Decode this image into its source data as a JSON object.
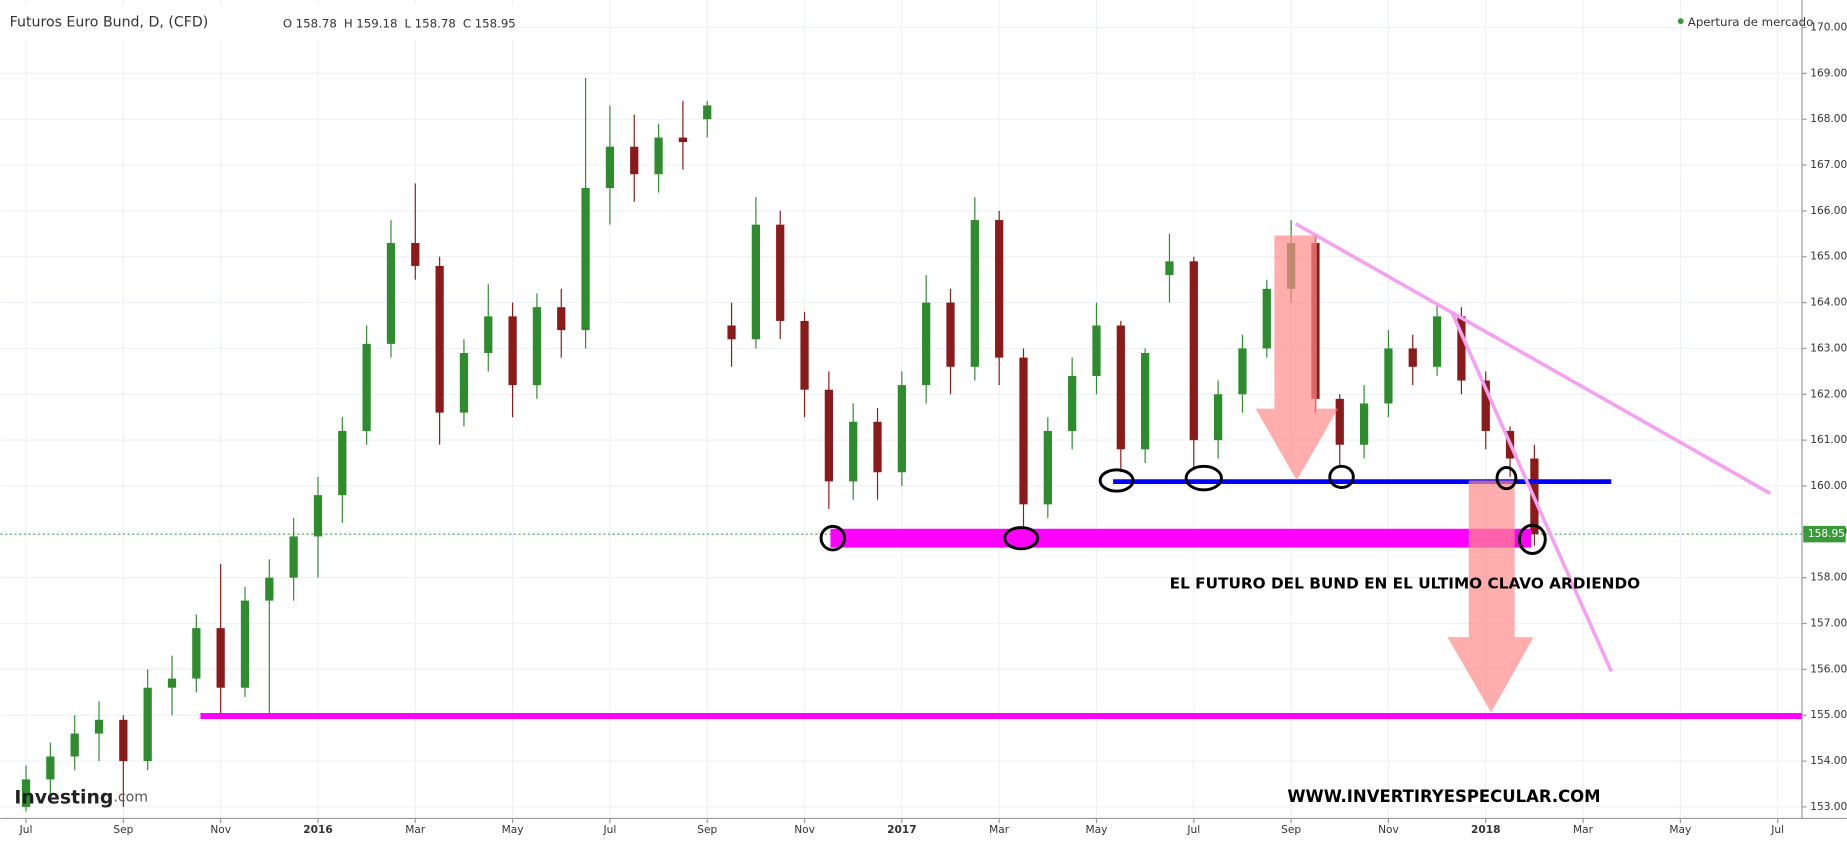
{
  "header": {
    "title": "Futuros Euro Bund, D, (CFD)",
    "ohlc": [
      {
        "label": "O",
        "value": 158.78
      },
      {
        "label": "H",
        "value": 159.18
      },
      {
        "label": "L",
        "value": 158.78
      },
      {
        "label": "C",
        "value": 158.95
      }
    ],
    "status": "Apertura de mercado"
  },
  "annotations": {
    "headline": "EL FUTURO DEL BUND EN EL ULTIMO CLAVO ARDIENDO",
    "website": "WWW.INVERTIRYESPECULAR.COM",
    "logo": "Investing",
    "logo_suffix": ".com"
  },
  "chart_data": {
    "type": "candlestick",
    "categories": [
      null,
      null,
      null,
      null,
      null,
      null,
      null,
      null,
      null,
      null,
      null,
      null,
      null,
      null,
      null,
      null,
      null,
      null,
      null,
      null,
      null,
      null,
      null,
      null,
      null,
      null,
      null,
      null,
      null,
      null,
      null,
      null,
      null,
      null,
      null,
      null,
      null,
      null,
      null,
      null,
      null,
      null,
      null,
      null,
      null,
      null,
      null,
      null,
      null,
      null,
      null,
      null,
      null,
      null,
      null,
      null,
      null,
      null,
      null,
      null,
      null,
      null,
      null
    ],
    "open": [
      153.0,
      153.6,
      154.1,
      154.6,
      154.9,
      154.0,
      155.6,
      155.8,
      156.9,
      155.6,
      157.5,
      158.0,
      158.9,
      159.8,
      161.2,
      163.1,
      165.3,
      164.8,
      161.6,
      162.9,
      163.7,
      162.2,
      163.9,
      163.4,
      166.5,
      167.4,
      166.8,
      167.6,
      168.0,
      163.5,
      163.2,
      165.7,
      163.6,
      162.1,
      160.1,
      161.4,
      160.3,
      162.2,
      164.0,
      162.6,
      165.8,
      162.8,
      159.6,
      161.2,
      162.4,
      163.5,
      160.8,
      164.6,
      164.9,
      161.0,
      162.0,
      163.0,
      164.3,
      165.3,
      161.9,
      160.9,
      161.8,
      163.0,
      162.6,
      163.7,
      162.3,
      161.2,
      160.6
    ],
    "high": [
      153.9,
      154.4,
      155.0,
      155.3,
      155.0,
      156.0,
      156.3,
      157.2,
      158.3,
      157.8,
      158.4,
      159.3,
      160.2,
      161.5,
      163.5,
      165.8,
      166.6,
      165.0,
      163.2,
      164.4,
      164.0,
      164.2,
      164.3,
      168.9,
      168.3,
      168.1,
      167.9,
      168.4,
      168.4,
      164.0,
      166.3,
      166.0,
      163.8,
      162.5,
      161.8,
      161.7,
      162.5,
      164.6,
      164.3,
      166.3,
      166.0,
      163.0,
      161.5,
      162.8,
      164.0,
      163.6,
      163.0,
      165.5,
      165.0,
      162.3,
      163.3,
      164.5,
      165.8,
      165.5,
      162.0,
      162.2,
      163.4,
      163.3,
      164.0,
      163.9,
      162.5,
      161.3,
      160.9
    ],
    "low": [
      152.9,
      153.2,
      153.8,
      154.0,
      153.0,
      153.8,
      155.0,
      155.5,
      155.0,
      155.4,
      155.0,
      157.5,
      158.0,
      159.2,
      160.9,
      162.8,
      164.5,
      160.9,
      161.3,
      162.5,
      161.5,
      161.9,
      162.8,
      163.0,
      165.7,
      166.2,
      166.4,
      166.9,
      167.6,
      162.6,
      163.0,
      163.2,
      161.5,
      159.5,
      159.7,
      159.7,
      160.0,
      161.8,
      162.0,
      162.3,
      162.2,
      158.9,
      159.3,
      160.8,
      162.0,
      160.3,
      160.5,
      164.0,
      160.4,
      160.6,
      161.6,
      162.8,
      164.0,
      161.6,
      160.4,
      160.6,
      161.5,
      162.2,
      162.4,
      162.0,
      160.8,
      160.2,
      158.7
    ],
    "close": [
      153.6,
      154.1,
      154.6,
      154.9,
      154.0,
      155.6,
      155.8,
      156.9,
      155.6,
      157.5,
      158.0,
      158.9,
      159.8,
      161.2,
      163.1,
      165.3,
      164.8,
      161.6,
      162.9,
      163.7,
      162.2,
      163.9,
      163.4,
      166.5,
      167.4,
      166.8,
      167.6,
      167.5,
      168.3,
      163.2,
      165.7,
      163.6,
      162.1,
      160.1,
      161.4,
      160.3,
      162.2,
      164.0,
      162.6,
      165.8,
      162.8,
      159.6,
      161.2,
      162.4,
      163.5,
      160.8,
      162.9,
      164.9,
      161.0,
      162.0,
      163.0,
      164.3,
      165.3,
      161.9,
      160.9,
      161.8,
      163.0,
      162.6,
      163.7,
      162.3,
      161.2,
      160.6,
      158.95
    ],
    "up_color": "#2e8b2e",
    "down_color": "#8b1a1a",
    "xlim": [
      -1.06,
      73.0
    ],
    "xticks": [
      {
        "value": 0,
        "label": "Jul"
      },
      {
        "value": 4,
        "label": "Sep"
      },
      {
        "value": 8,
        "label": "Nov"
      },
      {
        "value": 12,
        "label": "2016"
      },
      {
        "value": 16,
        "label": "Mar"
      },
      {
        "value": 20,
        "label": "May"
      },
      {
        "value": 24,
        "label": "Jul"
      },
      {
        "value": 28,
        "label": "Sep"
      },
      {
        "value": 32,
        "label": "Nov"
      },
      {
        "value": 36,
        "label": "2017"
      },
      {
        "value": 40,
        "label": "Mar"
      },
      {
        "value": 44,
        "label": "May"
      },
      {
        "value": 48,
        "label": "Jul"
      },
      {
        "value": 52,
        "label": "Sep"
      },
      {
        "value": 56,
        "label": "Nov"
      },
      {
        "value": 60,
        "label": "2018"
      },
      {
        "value": 64,
        "label": "Mar"
      },
      {
        "value": 68,
        "label": "May"
      },
      {
        "value": 72,
        "label": "Jul"
      }
    ],
    "ylim": [
      152.8,
      170.6
    ],
    "yticks": [
      {
        "value": 153,
        "label": "153.00"
      },
      {
        "value": 154,
        "label": "154.00"
      },
      {
        "value": 155,
        "label": "155.00"
      },
      {
        "value": 156,
        "label": "156.00"
      },
      {
        "value": 157,
        "label": "157.00"
      },
      {
        "value": 158,
        "label": "158.00"
      },
      {
        "value": 159,
        "label": "159.00"
      },
      {
        "value": 160,
        "label": "160.00"
      },
      {
        "value": 161,
        "label": "161.00"
      },
      {
        "value": 162,
        "label": "162.00"
      },
      {
        "value": 163,
        "label": "163.00"
      },
      {
        "value": 164,
        "label": "164.00"
      },
      {
        "value": 165,
        "label": "165.00"
      },
      {
        "value": 166,
        "label": "166.00"
      },
      {
        "value": 167,
        "label": "167.00"
      },
      {
        "value": 168,
        "label": "168.00"
      },
      {
        "value": 169,
        "label": "169.00"
      },
      {
        "value": 170,
        "label": "170.00"
      }
    ],
    "last_price": 158.95,
    "last_price_color": "#3a9a3a",
    "grid": true
  }
}
